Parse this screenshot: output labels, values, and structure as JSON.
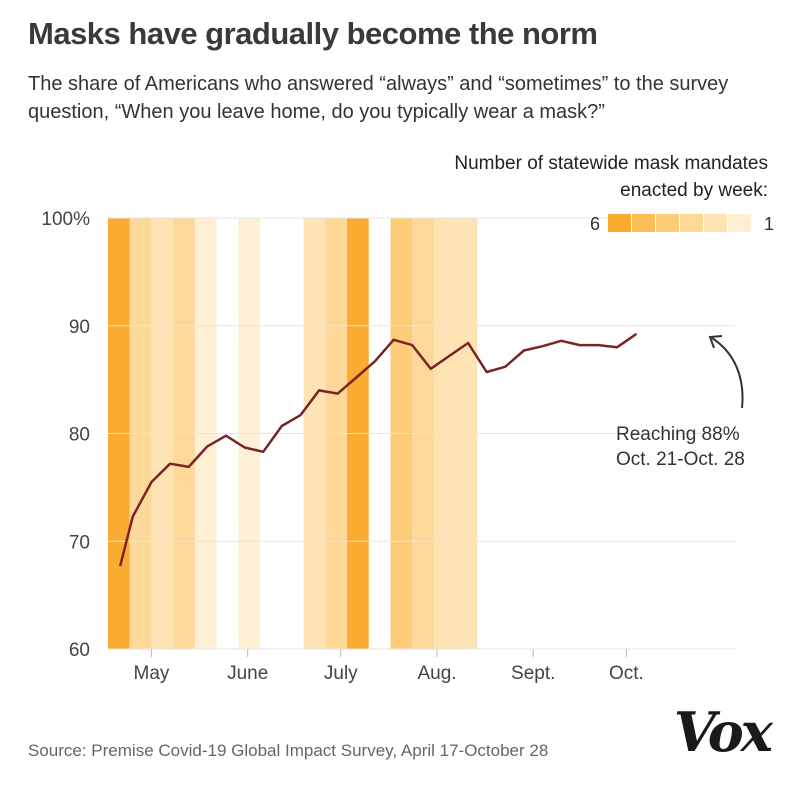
{
  "header": {
    "title": "Masks have gradually become the norm",
    "subtitle": "The share of Americans who answered “always” and “sometimes” to the survey question, “When you leave home, do you typically wear a mask?”"
  },
  "legend": {
    "title": "Number of statewide mask mandates enacted by week:",
    "max_label": "6",
    "min_label": "1",
    "levels": [
      6,
      5,
      4,
      3,
      2,
      1
    ]
  },
  "colors": {
    "line": "#7a2525",
    "level_6": "#f9ab32",
    "level_5": "#fbbd57",
    "level_4": "#fccc78",
    "level_3": "#fdd898",
    "level_2": "#fee3b5",
    "level_1": "#feefd5",
    "grid": "#e6e6e6"
  },
  "chart_data": {
    "type": "line",
    "title": "Masks have gradually become the norm",
    "ylabel": "",
    "xlabel": "",
    "ylim": [
      60,
      100
    ],
    "yticks": [
      60,
      70,
      80,
      90,
      100
    ],
    "ytick_labels": [
      "60",
      "70",
      "80",
      "90",
      "100%"
    ],
    "x_labels": [
      {
        "label": "May",
        "date": "2020-05-01"
      },
      {
        "label": "June",
        "date": "2020-06-01"
      },
      {
        "label": "July",
        "date": "2020-07-01"
      },
      {
        "label": "Aug.",
        "date": "2020-08-01"
      },
      {
        "label": "Sept.",
        "date": "2020-09-01"
      },
      {
        "label": "Oct.",
        "date": "2020-10-01"
      }
    ],
    "x_range": [
      "2020-04-17",
      "2020-11-05"
    ],
    "grid": true,
    "series": [
      {
        "points": [
          {
            "date": "2020-04-21",
            "value": 67.8
          },
          {
            "date": "2020-04-25",
            "value": 72.3
          },
          {
            "date": "2020-05-01",
            "value": 75.5
          },
          {
            "date": "2020-05-07",
            "value": 77.2
          },
          {
            "date": "2020-05-13",
            "value": 76.9
          },
          {
            "date": "2020-05-19",
            "value": 78.8
          },
          {
            "date": "2020-05-25",
            "value": 79.8
          },
          {
            "date": "2020-05-31",
            "value": 78.7
          },
          {
            "date": "2020-06-06",
            "value": 78.3
          },
          {
            "date": "2020-06-12",
            "value": 80.7
          },
          {
            "date": "2020-06-18",
            "value": 81.7
          },
          {
            "date": "2020-06-24",
            "value": 84.0
          },
          {
            "date": "2020-06-30",
            "value": 83.7
          },
          {
            "date": "2020-07-06",
            "value": 85.2
          },
          {
            "date": "2020-07-12",
            "value": 86.7
          },
          {
            "date": "2020-07-18",
            "value": 88.7
          },
          {
            "date": "2020-07-24",
            "value": 88.2
          },
          {
            "date": "2020-07-30",
            "value": 86.0
          },
          {
            "date": "2020-08-05",
            "value": 87.2
          },
          {
            "date": "2020-08-11",
            "value": 88.4
          },
          {
            "date": "2020-08-17",
            "value": 85.7
          },
          {
            "date": "2020-08-23",
            "value": 86.2
          },
          {
            "date": "2020-08-29",
            "value": 87.7
          },
          {
            "date": "2020-09-04",
            "value": 88.1
          },
          {
            "date": "2020-09-10",
            "value": 88.6
          },
          {
            "date": "2020-09-16",
            "value": 88.2
          },
          {
            "date": "2020-09-22",
            "value": 88.2
          },
          {
            "date": "2020-09-28",
            "value": 88.0
          },
          {
            "date": "2020-10-04",
            "value": 89.2
          }
        ]
      }
    ],
    "mandate_bands": [
      {
        "start": "2020-04-17",
        "end": "2020-04-24",
        "level": 6
      },
      {
        "start": "2020-04-24",
        "end": "2020-05-01",
        "level": 3
      },
      {
        "start": "2020-05-01",
        "end": "2020-05-08",
        "level": 2
      },
      {
        "start": "2020-05-08",
        "end": "2020-05-15",
        "level": 3
      },
      {
        "start": "2020-05-15",
        "end": "2020-05-22",
        "level": 1
      },
      {
        "start": "2020-05-29",
        "end": "2020-06-05",
        "level": 1
      },
      {
        "start": "2020-06-19",
        "end": "2020-06-26",
        "level": 2
      },
      {
        "start": "2020-06-26",
        "end": "2020-07-03",
        "level": 3
      },
      {
        "start": "2020-07-03",
        "end": "2020-07-10",
        "level": 6
      },
      {
        "start": "2020-07-17",
        "end": "2020-07-24",
        "level": 4
      },
      {
        "start": "2020-07-24",
        "end": "2020-07-31",
        "level": 3
      },
      {
        "start": "2020-07-31",
        "end": "2020-08-07",
        "level": 2
      },
      {
        "start": "2020-08-07",
        "end": "2020-08-14",
        "level": 2
      }
    ],
    "annotation": {
      "line1": "Reaching 88%",
      "line2": "Oct. 21-Oct. 28"
    }
  },
  "footer": {
    "source": "Source: Premise Covid-19 Global Impact Survey, April 17-October 28",
    "logo_text": "Vox"
  }
}
